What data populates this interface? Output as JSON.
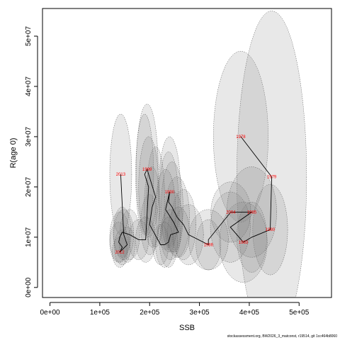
{
  "chart_data": {
    "type": "scatter",
    "xlabel": "SSB",
    "ylabel": "R(age 0)",
    "xlim": [
      -15000,
      565000
    ],
    "ylim": [
      -2000000,
      55500000
    ],
    "grid": false,
    "x_ticks": [
      {
        "value": 0,
        "label": "0e+00"
      },
      {
        "value": 100000,
        "label": "1e+05"
      },
      {
        "value": 200000,
        "label": "2e+05"
      },
      {
        "value": 300000,
        "label": "3e+05"
      },
      {
        "value": 400000,
        "label": "4e+05"
      },
      {
        "value": 500000,
        "label": "5e+05"
      }
    ],
    "y_ticks": [
      {
        "value": 0,
        "label": "0e+00"
      },
      {
        "value": 10000000,
        "label": "1e+07"
      },
      {
        "value": 20000000,
        "label": "2e+07"
      },
      {
        "value": 30000000,
        "label": "3e+07"
      },
      {
        "value": 40000000,
        "label": "4e+07"
      },
      {
        "value": 50000000,
        "label": "5e+07"
      }
    ],
    "colors": {
      "point_label": "#ff0000",
      "line": "#000000",
      "ellipse_fill": "#808080",
      "ellipse_stroke": "#555555"
    },
    "points": [
      {
        "year": "1978",
        "x": 383000,
        "y": 30000000,
        "rx": 55000,
        "ry": 17000000
      },
      {
        "year": "1979",
        "x": 445000,
        "y": 22000000,
        "rx": 70000,
        "ry": 33000000
      },
      {
        "year": "1980",
        "x": 442000,
        "y": 11500000,
        "rx": 35000,
        "ry": 9000000
      },
      {
        "year": "",
        "x": 405000,
        "y": 10000000,
        "rx": 30000,
        "ry": 7000000
      },
      {
        "year": "1983",
        "x": 388000,
        "y": 9000000,
        "rx": 48000,
        "ry": 8000000
      },
      {
        "year": "",
        "x": 362000,
        "y": 12000000,
        "rx": 40000,
        "ry": 7000000
      },
      {
        "year": "1985",
        "x": 405000,
        "y": 15000000,
        "rx": 50000,
        "ry": 9000000
      },
      {
        "year": "2004",
        "x": 363000,
        "y": 15000000,
        "rx": 40000,
        "ry": 6000000
      },
      {
        "year": "",
        "x": 318000,
        "y": 9500000,
        "rx": 40000,
        "ry": 6000000
      },
      {
        "year": "1986",
        "x": 318000,
        "y": 8500000,
        "rx": 25000,
        "ry": 5000000
      },
      {
        "year": "",
        "x": 278000,
        "y": 10500000,
        "rx": 30000,
        "ry": 6000000
      },
      {
        "year": "",
        "x": 268000,
        "y": 12500000,
        "rx": 25000,
        "ry": 7000000
      },
      {
        "year": "",
        "x": 255000,
        "y": 14000000,
        "rx": 25000,
        "ry": 8000000
      },
      {
        "year": "",
        "x": 245000,
        "y": 16000000,
        "rx": 22000,
        "ry": 9000000
      },
      {
        "year": "",
        "x": 238000,
        "y": 17000000,
        "rx": 20000,
        "ry": 10000000
      },
      {
        "year": "1990",
        "x": 240000,
        "y": 19000000,
        "rx": 22000,
        "ry": 11000000
      },
      {
        "year": "",
        "x": 232000,
        "y": 15500000,
        "rx": 20000,
        "ry": 8000000
      },
      {
        "year": "",
        "x": 248000,
        "y": 13000000,
        "rx": 18000,
        "ry": 6000000
      },
      {
        "year": "",
        "x": 258000,
        "y": 11000000,
        "rx": 22000,
        "ry": 5000000
      },
      {
        "year": "",
        "x": 242000,
        "y": 10500000,
        "rx": 20000,
        "ry": 5000000
      },
      {
        "year": "",
        "x": 238000,
        "y": 9000000,
        "rx": 18000,
        "ry": 5000000
      },
      {
        "year": "",
        "x": 230000,
        "y": 8500000,
        "rx": 18000,
        "ry": 4500000
      },
      {
        "year": "",
        "x": 222000,
        "y": 8500000,
        "rx": 16000,
        "ry": 4000000
      },
      {
        "year": "",
        "x": 200000,
        "y": 12500000,
        "rx": 18000,
        "ry": 6000000
      },
      {
        "year": "",
        "x": 205000,
        "y": 16000000,
        "rx": 16000,
        "ry": 8000000
      },
      {
        "year": "",
        "x": 212000,
        "y": 18000000,
        "rx": 18000,
        "ry": 10000000
      },
      {
        "year": "1999",
        "x": 195000,
        "y": 23500000,
        "rx": 22000,
        "ry": 13000000
      },
      {
        "year": "",
        "x": 190000,
        "y": 22500000,
        "rx": 18000,
        "ry": 12000000
      },
      {
        "year": "",
        "x": 198000,
        "y": 20000000,
        "rx": 20000,
        "ry": 10000000
      },
      {
        "year": "",
        "x": 192000,
        "y": 9500000,
        "rx": 20000,
        "ry": 4500000
      },
      {
        "year": "",
        "x": 178000,
        "y": 9500000,
        "rx": 20000,
        "ry": 4000000
      },
      {
        "year": "",
        "x": 160000,
        "y": 10500000,
        "rx": 20000,
        "ry": 5000000
      },
      {
        "year": "",
        "x": 145000,
        "y": 11000000,
        "rx": 18000,
        "ry": 5000000
      },
      {
        "year": "",
        "x": 140000,
        "y": 10000000,
        "rx": 20000,
        "ry": 5000000
      },
      {
        "year": "",
        "x": 138000,
        "y": 9000000,
        "rx": 18000,
        "ry": 4000000
      },
      {
        "year": "",
        "x": 145000,
        "y": 8000000,
        "rx": 16000,
        "ry": 3500000
      },
      {
        "year": "2012",
        "x": 140000,
        "y": 7000000,
        "rx": 15000,
        "ry": 3000000
      },
      {
        "year": "",
        "x": 155000,
        "y": 8500000,
        "rx": 16000,
        "ry": 3500000
      },
      {
        "year": "",
        "x": 148000,
        "y": 10500000,
        "rx": 20000,
        "ry": 5000000
      },
      {
        "year": "2013",
        "x": 142000,
        "y": 22500000,
        "rx": 22000,
        "ry": 12000000
      }
    ],
    "path_sequence": [
      0,
      1,
      2,
      3,
      4,
      5,
      6,
      7,
      8,
      9,
      10,
      11,
      12,
      13,
      14,
      15,
      16,
      17,
      18,
      19,
      20,
      21,
      22,
      23,
      24,
      25,
      26,
      27,
      28,
      29,
      30,
      31,
      32,
      33,
      34,
      35,
      36,
      37,
      38,
      39
    ]
  },
  "caption": "stockassessment.org, BW2026_3_matconst, r19514, git 1cc464b8060"
}
